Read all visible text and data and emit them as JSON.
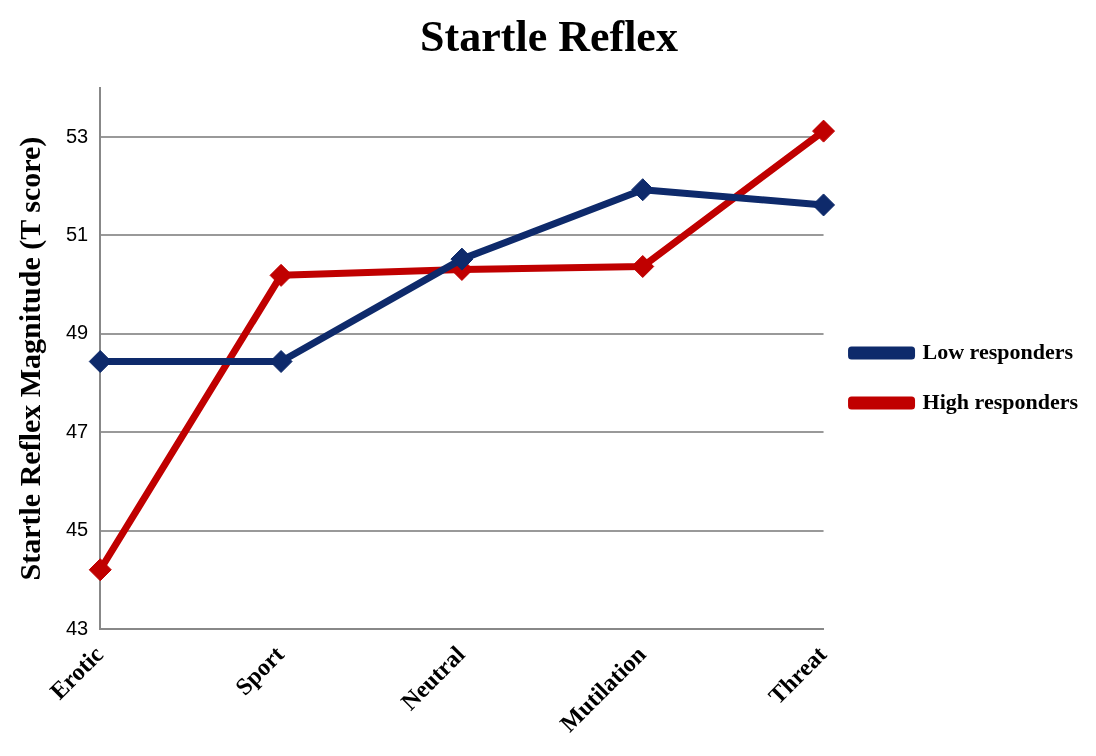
{
  "chart_data": {
    "type": "line",
    "title": "Startle Reflex",
    "ylabel": "Startle Reflex Magnitude (T score)",
    "categories": [
      "Erotic",
      "Sport",
      "Neutral",
      "Mutilation",
      "Threat"
    ],
    "series": [
      {
        "name": "Low responders",
        "color": "#0e2a6b",
        "values": [
          48.44,
          48.44,
          50.52,
          51.93,
          51.62
        ]
      },
      {
        "name": "High responders",
        "color": "#c00000",
        "values": [
          44.21,
          50.19,
          50.31,
          50.37,
          53.12
        ]
      }
    ],
    "ylim": [
      43,
      54
    ],
    "yticks": [
      43,
      45,
      47,
      49,
      51,
      53
    ],
    "grid": "y",
    "legend": "right",
    "marker": "diamond",
    "line_style": "solid"
  }
}
